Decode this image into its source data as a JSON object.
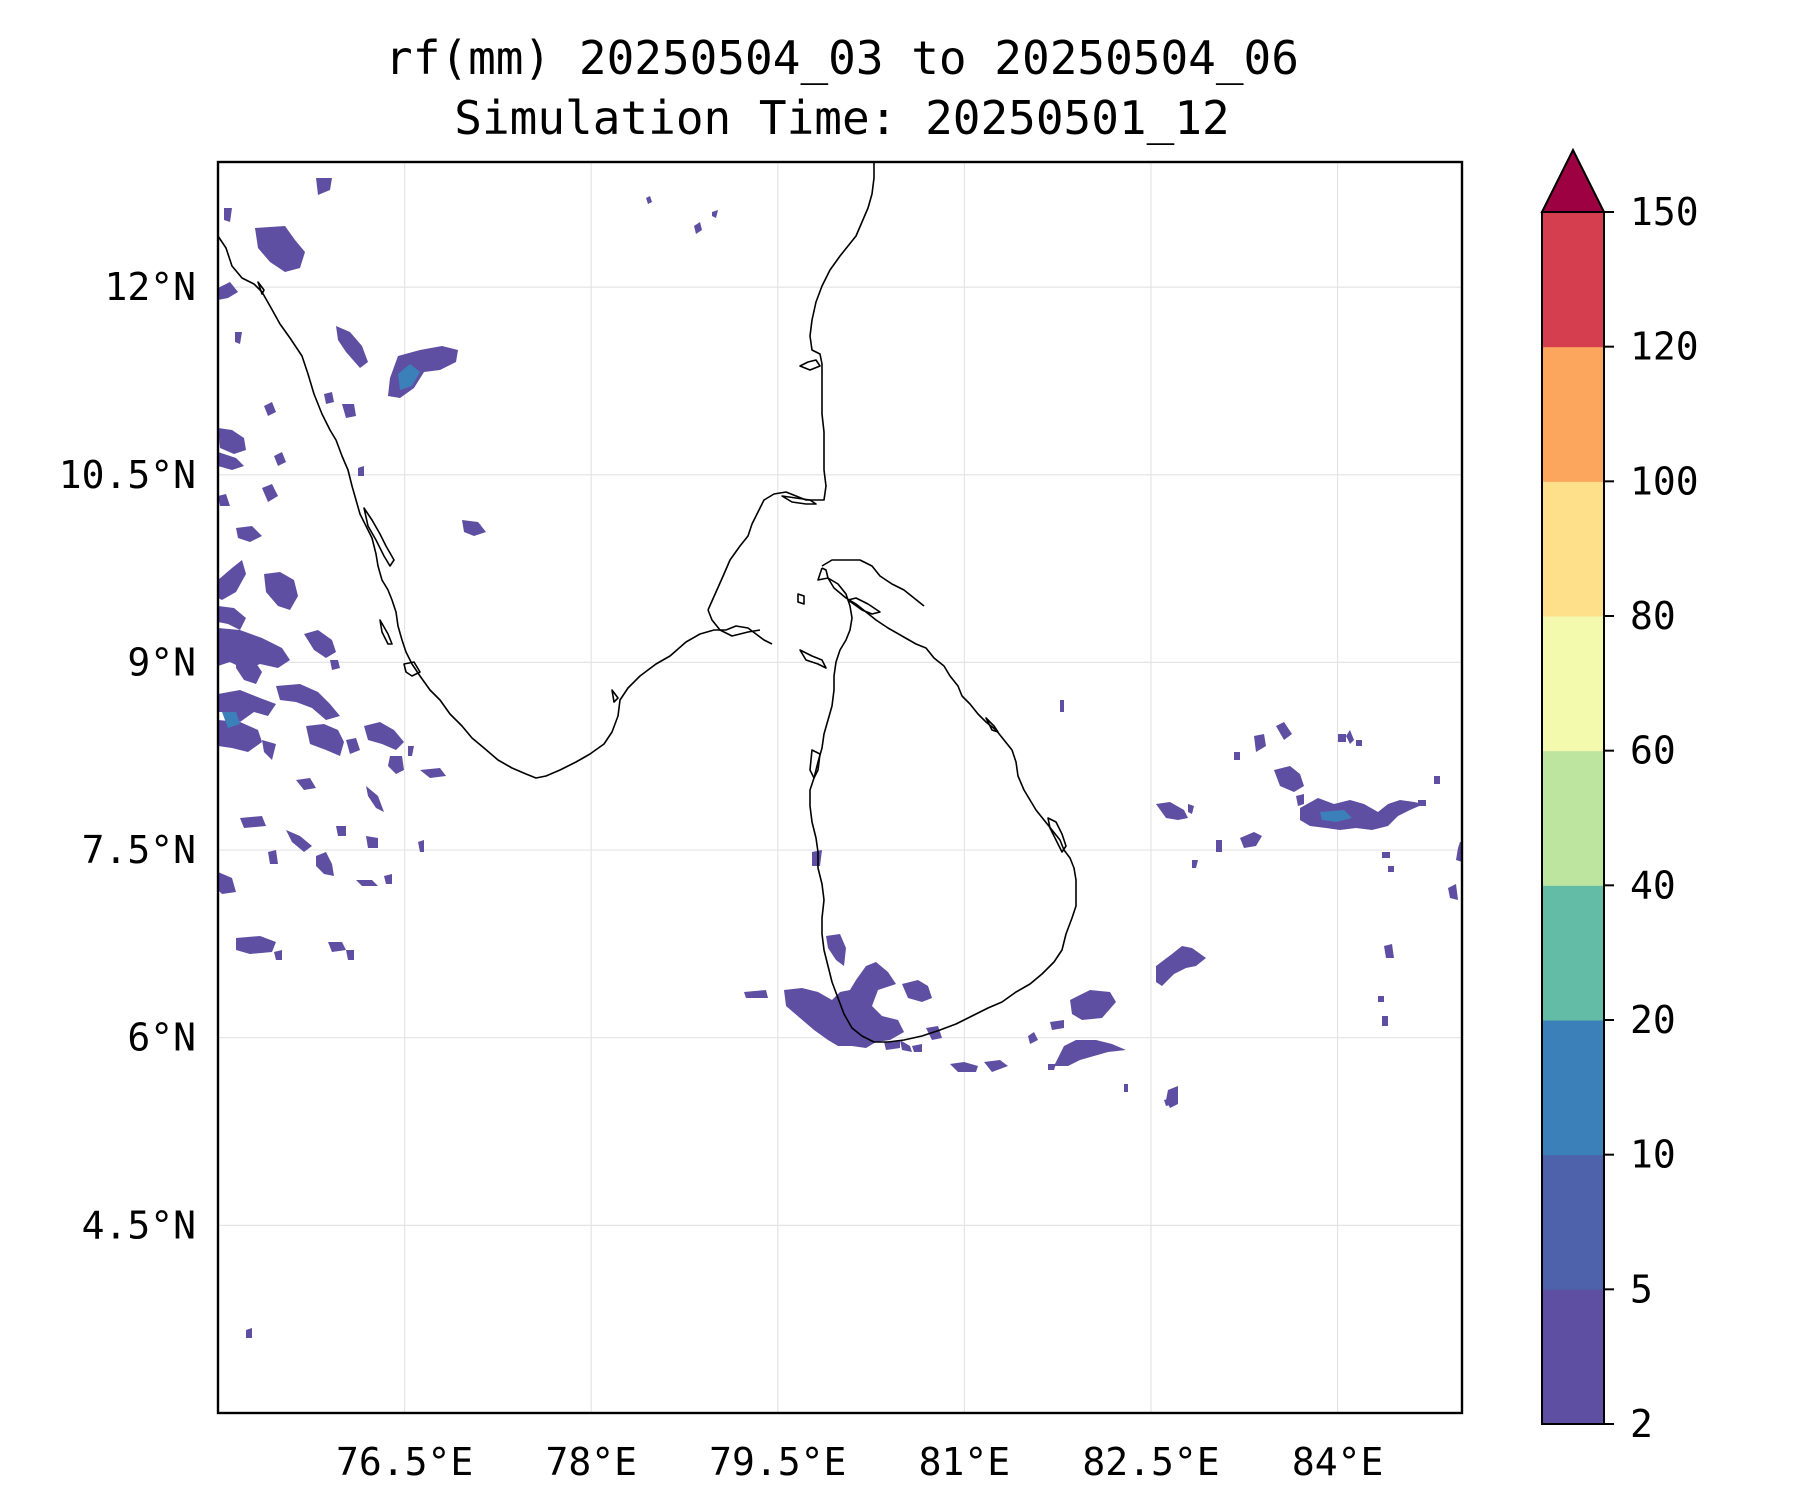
{
  "title": {
    "line1": "rf(mm) 20250504_03 to 20250504_06",
    "line2": "Simulation Time: 20250501_12"
  },
  "map": {
    "lon_range": [
      75,
      85
    ],
    "lat_range": [
      3,
      13
    ],
    "x_ticks": [
      {
        "value": 76.5,
        "label": "76.5°E"
      },
      {
        "value": 78,
        "label": "78°E"
      },
      {
        "value": 79.5,
        "label": "79.5°E"
      },
      {
        "value": 81,
        "label": "81°E"
      },
      {
        "value": 82.5,
        "label": "82.5°E"
      },
      {
        "value": 84,
        "label": "84°E"
      }
    ],
    "y_ticks": [
      {
        "value": 12,
        "label": "12°N"
      },
      {
        "value": 10.5,
        "label": "10.5°N"
      },
      {
        "value": 9,
        "label": "9°N"
      },
      {
        "value": 7.5,
        "label": "7.5°N"
      },
      {
        "value": 6,
        "label": "6°N"
      },
      {
        "value": 4.5,
        "label": "4.5°N"
      }
    ],
    "gridlines": true,
    "coastline_color": "#000000"
  },
  "colorbar": {
    "levels": [
      2,
      5,
      10,
      20,
      40,
      60,
      80,
      100,
      120,
      150
    ],
    "labels": [
      "2",
      "5",
      "10",
      "20",
      "40",
      "60",
      "80",
      "100",
      "120",
      "150"
    ],
    "colors": [
      "#5e4fa2",
      "#4e62ab",
      "#3b80b9",
      "#62bca6",
      "#bde5a0",
      "#f3faad",
      "#fee08b",
      "#fca55d",
      "#d53e4f"
    ],
    "extend_color": "#9e0142",
    "extend": "max"
  },
  "rain_color_primary": "#5e4fa2",
  "rain_color_secondary": "#3b80b9"
}
